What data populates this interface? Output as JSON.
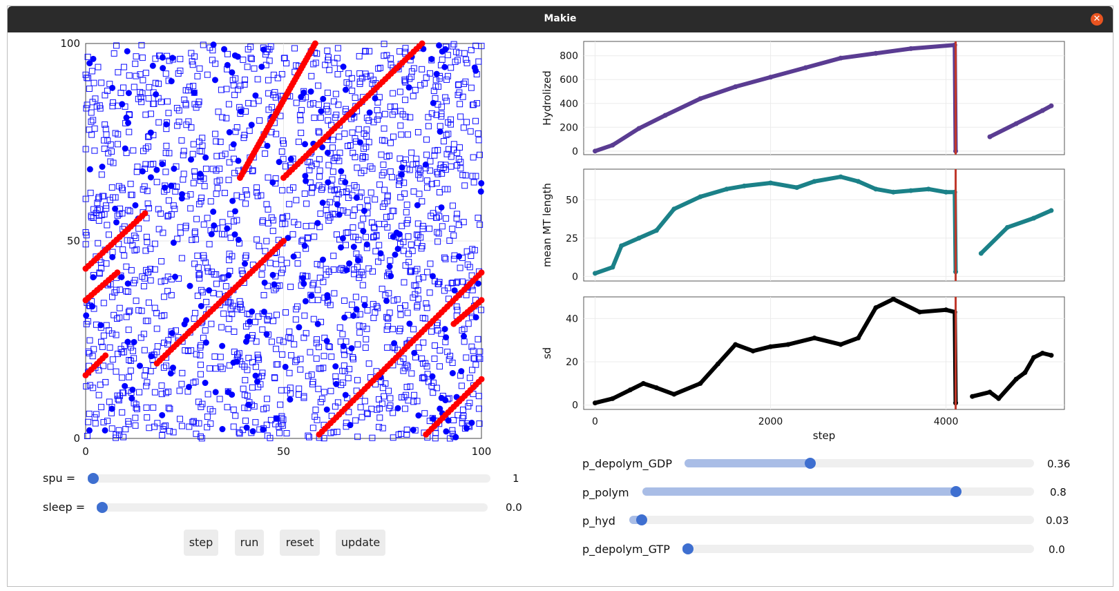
{
  "window": {
    "title": "Makie"
  },
  "lattice": {
    "xticks": [
      "0",
      "50",
      "100"
    ],
    "yticks": [
      "0",
      "50",
      "100"
    ],
    "red_lines": [
      [
        0,
        43,
        15,
        57
      ],
      [
        0,
        35,
        8,
        42
      ],
      [
        0,
        16,
        5,
        21
      ],
      [
        18,
        19,
        50,
        50
      ],
      [
        39,
        66,
        58,
        100
      ],
      [
        50,
        66,
        85,
        100
      ],
      [
        59,
        1,
        100,
        42
      ],
      [
        86,
        1,
        100,
        15
      ],
      [
        93,
        29,
        100,
        35
      ]
    ],
    "colors": {
      "empty": "#1010ff",
      "filled": "#0000ff",
      "mt": "#ff0000"
    }
  },
  "controls": {
    "spu": {
      "label": "spu =",
      "value": "1",
      "fraction": 0.0
    },
    "sleep": {
      "label": "sleep =",
      "value": "0.0",
      "fraction": 0.0
    },
    "buttons": [
      "step",
      "run",
      "reset",
      "update"
    ]
  },
  "chart_data": [
    {
      "type": "scatter",
      "ylabel": "Hydrolized",
      "yticks": [
        0,
        200,
        400,
        600,
        800
      ],
      "ylim": [
        -30,
        920
      ],
      "x": [
        0,
        200,
        500,
        800,
        1200,
        1600,
        2000,
        2400,
        2800,
        3200,
        3600,
        4100,
        4110,
        4500,
        4800,
        5100,
        5200
      ],
      "y": [
        0,
        50,
        190,
        300,
        440,
        540,
        620,
        700,
        780,
        820,
        860,
        890,
        0,
        120,
        230,
        340,
        380
      ],
      "color": "#5a3c92"
    },
    {
      "type": "scatter",
      "ylabel": "mean MT length",
      "yticks": [
        0,
        25,
        50
      ],
      "ylim": [
        -3,
        70
      ],
      "x": [
        0,
        200,
        300,
        500,
        700,
        900,
        1200,
        1500,
        1700,
        2000,
        2300,
        2500,
        2800,
        3000,
        3200,
        3400,
        3600,
        3800,
        4000,
        4100,
        4110,
        4400,
        4700,
        5000,
        5200
      ],
      "y": [
        2,
        6,
        20,
        25,
        30,
        44,
        52,
        57,
        59,
        61,
        58,
        62,
        65,
        62,
        57,
        55,
        56,
        57,
        55,
        55,
        3,
        15,
        32,
        38,
        43
      ],
      "color": "#1b8188"
    },
    {
      "type": "scatter",
      "ylabel": "sd",
      "xlabel": "step",
      "xticks": [
        0,
        2000,
        4000
      ],
      "yticks": [
        0,
        20,
        40
      ],
      "ylim": [
        -2,
        50
      ],
      "x": [
        0,
        200,
        400,
        550,
        700,
        900,
        1200,
        1400,
        1600,
        1800,
        2000,
        2200,
        2500,
        2800,
        3000,
        3200,
        3400,
        3700,
        4000,
        4100,
        4110,
        4300,
        4500,
        4600,
        4800,
        4900,
        5000,
        5100,
        5200
      ],
      "y": [
        1,
        3,
        7,
        10,
        8,
        5,
        10,
        19,
        28,
        25,
        27,
        28,
        31,
        28,
        31,
        45,
        49,
        43,
        44,
        43,
        1,
        4,
        6,
        3,
        12,
        15,
        22,
        24,
        23
      ],
      "color": "#000000"
    }
  ],
  "vline": {
    "x": 4110,
    "color": "#c0392b"
  },
  "params": [
    {
      "label": "p_depolym_GDP",
      "value": "0.36",
      "fraction": 0.36
    },
    {
      "label": "p_polym",
      "value": "0.8",
      "fraction": 0.8
    },
    {
      "label": "p_hyd",
      "value": "0.03",
      "fraction": 0.03
    },
    {
      "label": "p_depolym_GTP",
      "value": "0.0",
      "fraction": 0.0
    }
  ]
}
